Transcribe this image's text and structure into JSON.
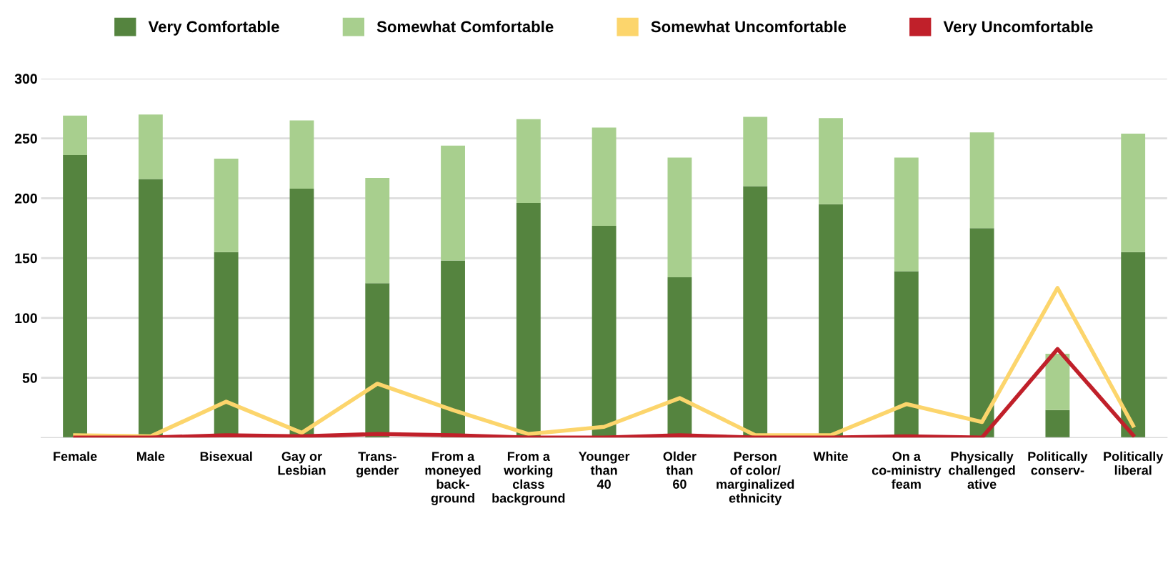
{
  "chart_data": {
    "type": "bar",
    "stacked": true,
    "categories": [
      "Female",
      "Male",
      "Bisexual",
      "Gay or\nLesbian",
      "Trans-\ngender",
      "From a\nmoneyed\nback-\nground",
      "From a\nworking\nclass\nbackground",
      "Younger\nthan\n40",
      "Older\nthan\n60",
      "Person\nof color/\nmarginalized\nethnicity",
      "White",
      "On a\nco-ministry\nfeam",
      "Physically\nchallenged\native",
      "Politically\nconserv-",
      "Politically\nliberal"
    ],
    "series": [
      {
        "name": "Very Comfortable",
        "color": "#55843f",
        "values": [
          236,
          216,
          155,
          208,
          129,
          148,
          196,
          177,
          134,
          210,
          195,
          139,
          175,
          23,
          155
        ]
      },
      {
        "name": "Somewhat Comfortable",
        "color": "#a8cf8e",
        "values": [
          33,
          54,
          78,
          57,
          88,
          96,
          70,
          82,
          100,
          58,
          72,
          95,
          80,
          47,
          99
        ]
      },
      {
        "name": "Somewhat Uncomfortable",
        "color": "#fcd56c",
        "type": "line",
        "values": [
          2,
          1,
          30,
          4,
          45,
          23,
          3,
          9,
          33,
          2,
          2,
          28,
          13,
          125,
          10
        ]
      },
      {
        "name": "Very Uncomfortable",
        "color": "#c0202a",
        "type": "line",
        "values": [
          0,
          0,
          2,
          1,
          3,
          2,
          0,
          0,
          2,
          0,
          0,
          1,
          0,
          74,
          2
        ]
      }
    ],
    "ylim": [
      0,
      300
    ],
    "yticks": [
      50,
      100,
      150,
      200,
      250,
      300
    ],
    "grid": "y",
    "legend": "top"
  }
}
